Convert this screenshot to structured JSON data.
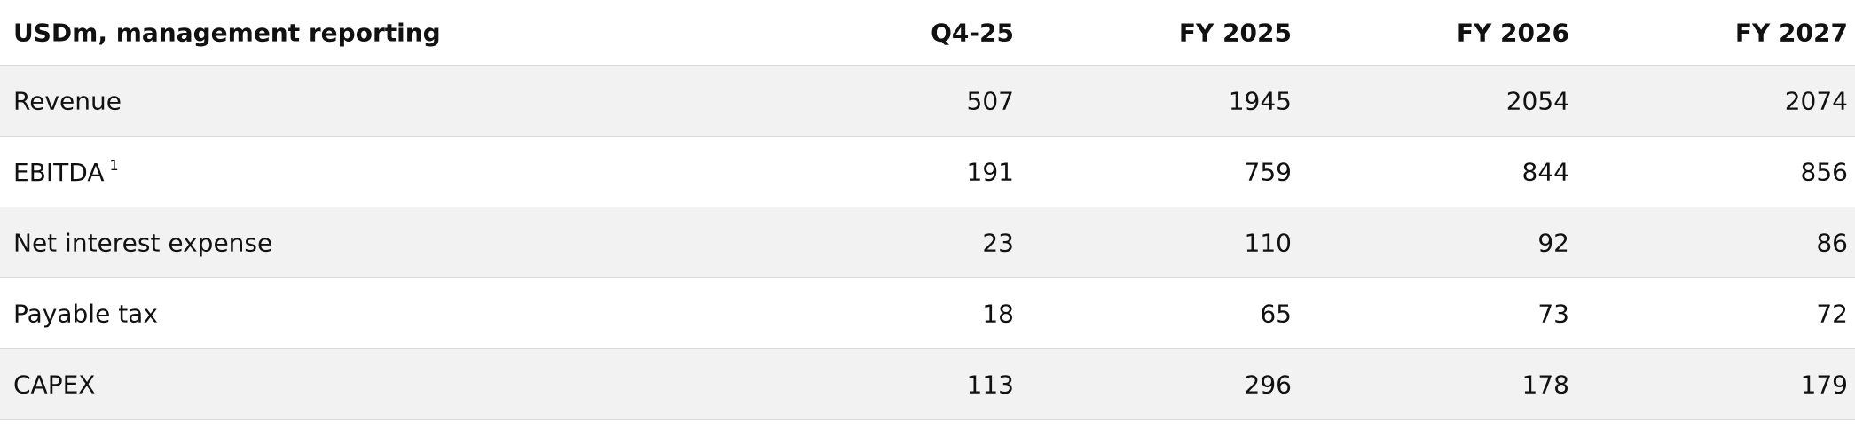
{
  "table": {
    "header": [
      "USDm, management reporting",
      "Q4-25",
      "FY 2025",
      "FY 2026",
      "FY 2027"
    ],
    "rows": [
      {
        "label": "Revenue",
        "values": [
          507,
          1945,
          2054,
          2074
        ]
      },
      {
        "label": "EBITDA",
        "footnote": "1",
        "values": [
          191,
          759,
          844,
          856
        ]
      },
      {
        "label": "Net interest expense",
        "values": [
          23,
          110,
          92,
          86
        ]
      },
      {
        "label": "Payable tax",
        "values": [
          18,
          65,
          73,
          72
        ]
      },
      {
        "label": "CAPEX",
        "values": [
          113,
          296,
          178,
          179
        ]
      }
    ]
  }
}
